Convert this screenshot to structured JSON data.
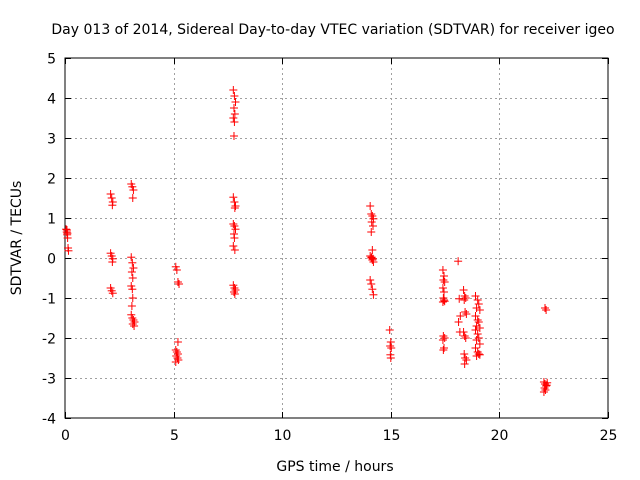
{
  "chart_data": {
    "type": "scatter",
    "title": "Day 013 of 2014, Sidereal Day-to-day VTEC variation (SDTVAR) for receiver igeo",
    "xlabel": "GPS time / hours",
    "ylabel": "SDTVAR / TECUs",
    "xlim": [
      0,
      25
    ],
    "ylim": [
      -4,
      5
    ],
    "xticks": [
      0,
      5,
      10,
      15,
      20,
      25
    ],
    "yticks": [
      -4,
      -3,
      -2,
      -1,
      0,
      1,
      2,
      3,
      4,
      5
    ],
    "grid": true,
    "marker": "+",
    "color": "#ff0000",
    "series": [
      {
        "name": "SDTVAR",
        "points": [
          [
            0.05,
            0.72
          ],
          [
            0.08,
            0.65
          ],
          [
            0.1,
            0.58
          ],
          [
            0.12,
            0.5
          ],
          [
            0.14,
            0.25
          ],
          [
            0.16,
            0.18
          ],
          [
            0.09,
            0.7
          ],
          [
            0.11,
            0.62
          ],
          [
            2.1,
            1.6
          ],
          [
            2.15,
            1.5
          ],
          [
            2.2,
            1.4
          ],
          [
            2.18,
            1.32
          ],
          [
            2.1,
            0.12
          ],
          [
            2.15,
            0.05
          ],
          [
            2.2,
            -0.02
          ],
          [
            2.18,
            -0.1
          ],
          [
            2.1,
            -0.75
          ],
          [
            2.15,
            -0.82
          ],
          [
            2.2,
            -0.88
          ],
          [
            3.05,
            1.85
          ],
          [
            3.1,
            1.78
          ],
          [
            3.15,
            1.7
          ],
          [
            3.12,
            1.5
          ],
          [
            3.05,
            0.02
          ],
          [
            3.1,
            -0.12
          ],
          [
            3.15,
            -0.25
          ],
          [
            3.08,
            -0.35
          ],
          [
            3.12,
            -0.5
          ],
          [
            3.05,
            -0.7
          ],
          [
            3.1,
            -0.78
          ],
          [
            3.12,
            -1.0
          ],
          [
            3.08,
            -1.2
          ],
          [
            3.05,
            -1.42
          ],
          [
            3.1,
            -1.5
          ],
          [
            3.15,
            -1.55
          ],
          [
            3.2,
            -1.6
          ],
          [
            3.12,
            -1.65
          ],
          [
            3.18,
            -1.7
          ],
          [
            5.1,
            -0.22
          ],
          [
            5.15,
            -0.3
          ],
          [
            5.2,
            -0.6
          ],
          [
            5.25,
            -0.65
          ],
          [
            5.2,
            -2.1
          ],
          [
            5.1,
            -2.3
          ],
          [
            5.15,
            -2.35
          ],
          [
            5.2,
            -2.4
          ],
          [
            5.12,
            -2.45
          ],
          [
            5.18,
            -2.5
          ],
          [
            5.22,
            -2.55
          ],
          [
            5.1,
            -2.6
          ],
          [
            7.75,
            4.2
          ],
          [
            7.8,
            4.05
          ],
          [
            7.85,
            3.9
          ],
          [
            7.78,
            3.75
          ],
          [
            7.82,
            3.6
          ],
          [
            7.75,
            3.5
          ],
          [
            7.8,
            3.4
          ],
          [
            7.78,
            3.05
          ],
          [
            7.75,
            1.52
          ],
          [
            7.8,
            1.4
          ],
          [
            7.85,
            1.3
          ],
          [
            7.82,
            1.25
          ],
          [
            7.75,
            0.85
          ],
          [
            7.8,
            0.8
          ],
          [
            7.85,
            0.72
          ],
          [
            7.78,
            0.6
          ],
          [
            7.8,
            0.5
          ],
          [
            7.75,
            0.3
          ],
          [
            7.82,
            0.2
          ],
          [
            7.75,
            -0.68
          ],
          [
            7.8,
            -0.75
          ],
          [
            7.85,
            -0.8
          ],
          [
            7.78,
            -0.85
          ],
          [
            7.82,
            -0.9
          ],
          [
            14.05,
            1.3
          ],
          [
            14.1,
            1.1
          ],
          [
            14.15,
            1.05
          ],
          [
            14.2,
            0.98
          ],
          [
            14.12,
            0.9
          ],
          [
            14.18,
            0.8
          ],
          [
            14.1,
            0.65
          ],
          [
            14.15,
            0.2
          ],
          [
            14.05,
            0.05
          ],
          [
            14.1,
            0.0
          ],
          [
            14.15,
            -0.05
          ],
          [
            14.2,
            -0.1
          ],
          [
            14.12,
            0.02
          ],
          [
            14.18,
            -0.02
          ],
          [
            14.05,
            -0.55
          ],
          [
            14.1,
            -0.65
          ],
          [
            14.15,
            -0.78
          ],
          [
            14.2,
            -0.92
          ],
          [
            14.95,
            -1.8
          ],
          [
            15.0,
            -2.1
          ],
          [
            14.97,
            -2.2
          ],
          [
            15.02,
            -2.25
          ],
          [
            14.98,
            -2.42
          ],
          [
            15.0,
            -2.5
          ],
          [
            17.4,
            -0.3
          ],
          [
            17.45,
            -0.45
          ],
          [
            17.42,
            -0.55
          ],
          [
            17.48,
            -0.6
          ],
          [
            17.4,
            -0.75
          ],
          [
            17.45,
            -0.85
          ],
          [
            17.42,
            -1.0
          ],
          [
            17.48,
            -1.08
          ],
          [
            17.4,
            -1.1
          ],
          [
            17.45,
            -1.05
          ],
          [
            17.42,
            -1.95
          ],
          [
            17.48,
            -2.0
          ],
          [
            17.4,
            -2.05
          ],
          [
            17.45,
            -2.25
          ],
          [
            17.42,
            -2.3
          ],
          [
            18.1,
            -0.08
          ],
          [
            18.15,
            -1.02
          ],
          [
            18.2,
            -1.45
          ],
          [
            18.12,
            -1.6
          ],
          [
            18.18,
            -1.85
          ],
          [
            18.35,
            -0.8
          ],
          [
            18.4,
            -0.95
          ],
          [
            18.45,
            -1.0
          ],
          [
            18.38,
            -1.05
          ],
          [
            18.42,
            -1.35
          ],
          [
            18.48,
            -1.4
          ],
          [
            18.35,
            -1.85
          ],
          [
            18.4,
            -1.95
          ],
          [
            18.45,
            -2.0
          ],
          [
            18.38,
            -2.4
          ],
          [
            18.42,
            -2.5
          ],
          [
            18.48,
            -2.55
          ],
          [
            18.4,
            -2.65
          ],
          [
            18.9,
            -0.95
          ],
          [
            19.0,
            -1.05
          ],
          [
            19.05,
            -1.15
          ],
          [
            18.95,
            -1.25
          ],
          [
            19.1,
            -1.3
          ],
          [
            18.9,
            -1.45
          ],
          [
            19.0,
            -1.55
          ],
          [
            19.05,
            -1.6
          ],
          [
            18.95,
            -1.7
          ],
          [
            19.1,
            -1.75
          ],
          [
            18.9,
            -1.8
          ],
          [
            19.0,
            -1.9
          ],
          [
            19.05,
            -2.0
          ],
          [
            18.95,
            -2.05
          ],
          [
            19.1,
            -2.15
          ],
          [
            18.9,
            -2.25
          ],
          [
            19.0,
            -2.35
          ],
          [
            19.05,
            -2.4
          ],
          [
            18.95,
            -2.45
          ],
          [
            19.1,
            -2.42
          ],
          [
            22.1,
            -1.25
          ],
          [
            22.15,
            -1.3
          ],
          [
            22.05,
            -3.1
          ],
          [
            22.1,
            -3.15
          ],
          [
            22.15,
            -3.2
          ],
          [
            22.2,
            -3.12
          ],
          [
            22.08,
            -3.25
          ],
          [
            22.12,
            -3.3
          ],
          [
            22.18,
            -3.18
          ],
          [
            22.05,
            -3.35
          ]
        ]
      }
    ]
  }
}
